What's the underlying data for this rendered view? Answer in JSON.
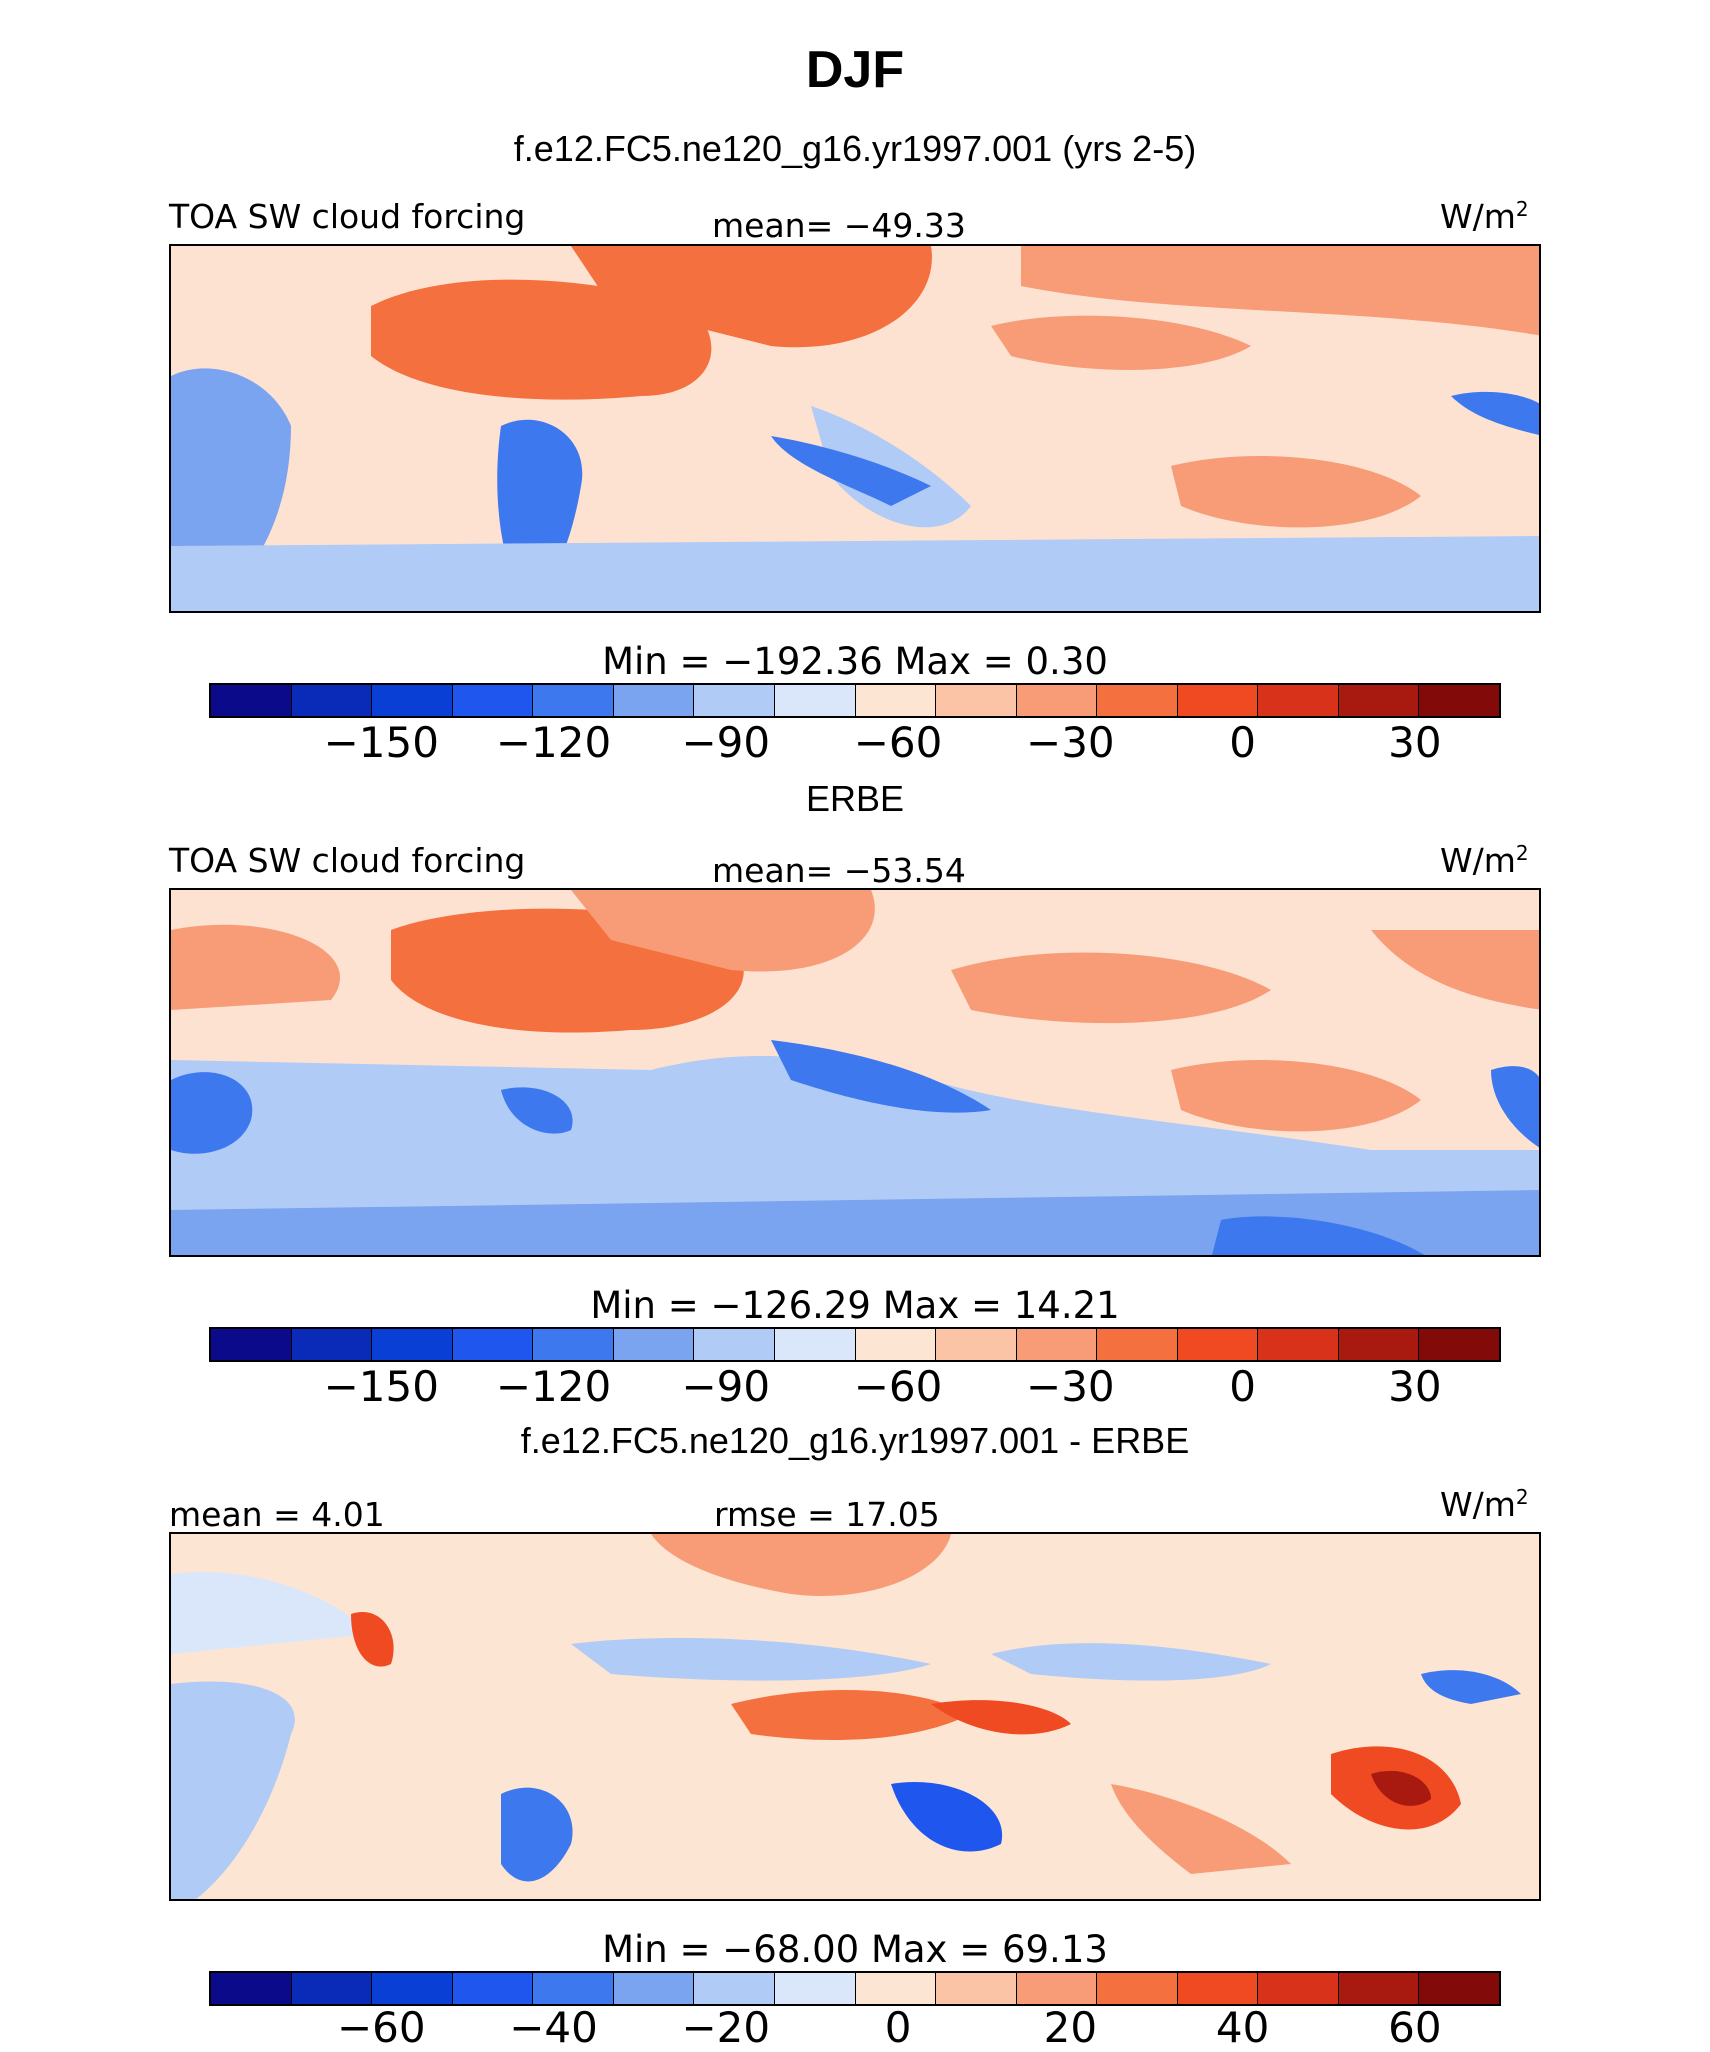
{
  "figure": {
    "title": "DJF"
  },
  "chart_data": [
    {
      "type": "heatmap",
      "subtitle": "f.e12.FC5.ne120_g16.yr1997.001 (yrs 2-5)",
      "left_label": "TOA SW cloud forcing",
      "center_label": "mean= −49.33",
      "units": "W/m",
      "units_sup": "2",
      "stats": "Min  =  −192.36  Max  =     0.30",
      "min": -192.36,
      "max": 0.3,
      "mean": -49.33,
      "colorbar_ticks": [
        "−150",
        "−120",
        "−90",
        "−60",
        "−30",
        "0",
        "30"
      ],
      "colorbar_tick_values": [
        -150,
        -120,
        -90,
        -60,
        -30,
        0,
        30
      ],
      "colorbar_range": [
        -180,
        45
      ]
    },
    {
      "type": "heatmap",
      "subtitle": "ERBE",
      "left_label": "TOA SW cloud forcing",
      "center_label": "mean= −53.54",
      "units": "W/m",
      "units_sup": "2",
      "stats": "Min  =  −126.29  Max  =   14.21",
      "min": -126.29,
      "max": 14.21,
      "mean": -53.54,
      "colorbar_ticks": [
        "−150",
        "−120",
        "−90",
        "−60",
        "−30",
        "0",
        "30"
      ],
      "colorbar_tick_values": [
        -150,
        -120,
        -90,
        -60,
        -30,
        0,
        30
      ],
      "colorbar_range": [
        -180,
        45
      ]
    },
    {
      "type": "heatmap",
      "subtitle": "f.e12.FC5.ne120_g16.yr1997.001 - ERBE",
      "left_label": "mean =   4.01",
      "center_label": "rmse =   17.05",
      "units": "W/m",
      "units_sup": "2",
      "stats": "Min  =  −68.00  Max  =   69.13",
      "min": -68.0,
      "max": 69.13,
      "mean": 4.01,
      "rmse": 17.05,
      "colorbar_ticks": [
        "−60",
        "−40",
        "−20",
        "0",
        "20",
        "40",
        "60"
      ],
      "colorbar_tick_values": [
        -60,
        -40,
        -20,
        0,
        20,
        40,
        60
      ],
      "colorbar_range": [
        -80,
        70
      ]
    }
  ],
  "colors": {
    "colorbar": [
      "#0a0a8a",
      "#0a2ab8",
      "#0a3fd6",
      "#1e56ee",
      "#3d78ee",
      "#7aa3f0",
      "#b0cbf5",
      "#dae7fb",
      "#fde5d3",
      "#fbc4a6",
      "#f79c77",
      "#f4703f",
      "#f04a22",
      "#d8321a",
      "#a81a10",
      "#820a08"
    ]
  }
}
